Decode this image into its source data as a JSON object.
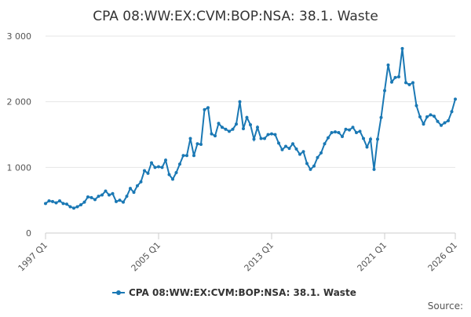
{
  "chart_data": {
    "type": "line",
    "title": "CPA 08:WW:EX:CVM:BOP:NSA: 38.1. Waste",
    "categories": [
      "1997 Q1",
      null,
      null,
      null,
      null,
      null,
      null,
      null,
      null,
      null,
      null,
      null,
      null,
      null,
      null,
      null,
      null,
      null,
      null,
      null,
      null,
      null,
      null,
      null,
      null,
      null,
      null,
      null,
      null,
      null,
      null,
      null,
      "2005 Q1",
      null,
      null,
      null,
      null,
      null,
      null,
      null,
      null,
      null,
      null,
      null,
      null,
      null,
      null,
      null,
      null,
      null,
      null,
      null,
      null,
      null,
      null,
      null,
      null,
      null,
      null,
      null,
      null,
      null,
      null,
      null,
      "2013 Q1",
      null,
      null,
      null,
      null,
      null,
      null,
      null,
      null,
      null,
      null,
      null,
      null,
      null,
      null,
      null,
      null,
      null,
      null,
      null,
      null,
      null,
      null,
      null,
      null,
      null,
      null,
      null,
      null,
      null,
      null,
      null,
      "2021 Q1",
      null,
      null,
      null,
      null,
      null,
      null,
      null,
      null,
      null,
      null,
      null,
      null,
      null,
      null,
      null,
      null,
      null,
      null,
      null,
      "2026 Q1"
    ],
    "series": [
      {
        "name": "CPA 08:WW:EX:CVM:BOP:NSA: 38.1. Waste",
        "color": "#1a78b4",
        "values": [
          450,
          490,
          480,
          460,
          490,
          450,
          440,
          400,
          380,
          400,
          430,
          470,
          550,
          540,
          510,
          560,
          580,
          640,
          580,
          600,
          480,
          500,
          470,
          560,
          680,
          620,
          720,
          780,
          950,
          910,
          1070,
          1000,
          1010,
          1000,
          1110,
          890,
          820,
          920,
          1050,
          1180,
          1180,
          1440,
          1180,
          1360,
          1350,
          1880,
          1910,
          1510,
          1480,
          1670,
          1610,
          1580,
          1550,
          1580,
          1660,
          2000,
          1590,
          1760,
          1650,
          1430,
          1610,
          1440,
          1440,
          1500,
          1510,
          1500,
          1370,
          1270,
          1320,
          1290,
          1360,
          1280,
          1200,
          1240,
          1060,
          970,
          1020,
          1150,
          1220,
          1360,
          1450,
          1530,
          1540,
          1530,
          1470,
          1580,
          1570,
          1610,
          1530,
          1550,
          1440,
          1310,
          1430,
          970,
          1430,
          1760,
          2170,
          2560,
          2300,
          2370,
          2380,
          2810,
          2290,
          2260,
          2290,
          1940,
          1770,
          1660,
          1770,
          1800,
          1780,
          1700,
          1640,
          1680,
          1710,
          1850,
          2040
        ]
      }
    ],
    "ylim": [
      0,
      3000
    ],
    "yticks": [
      0,
      {
        "value": 1000,
        "label": "1 000"
      },
      {
        "value": 2000,
        "label": "2 000"
      },
      {
        "value": 3000,
        "label": "3 000"
      }
    ],
    "grid": true,
    "legend": "bottom",
    "source_label": "Source:"
  }
}
